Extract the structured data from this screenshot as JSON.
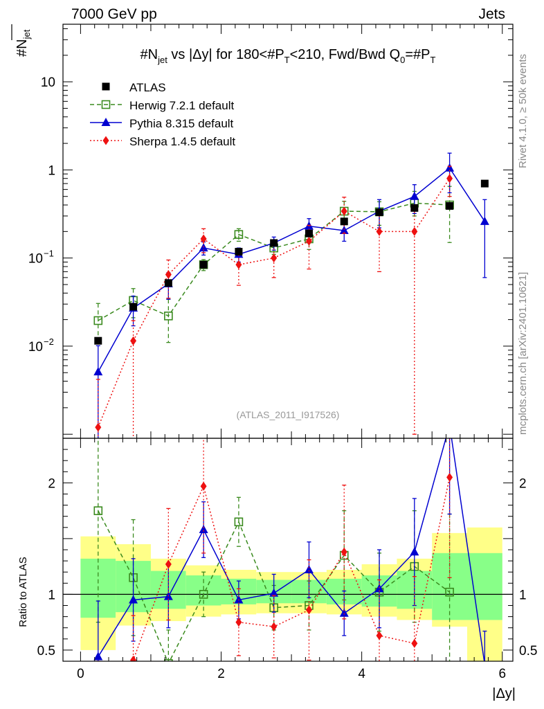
{
  "header": {
    "left": "7000 GeV pp",
    "right": "Jets"
  },
  "side_labels": {
    "rivet": "Rivet 4.1.0, ≥ 50k events",
    "mcplots": "mcplots.cern.ch [arXiv:2401.10621]"
  },
  "chart_data": {
    "type": "scatter",
    "title": "#N_jet vs |Δy| for 180<#P_T<210, Fwd/Bwd Q0=#P_T",
    "title_parts": {
      "a": "#N",
      "a_sub": "jet",
      "b": " vs |Δy| for 180<#P",
      "b_sub": "T",
      "c": "<210, Fwd/Bwd Q",
      "c_sub": "0",
      "d": "=#P",
      "d_sub": "T"
    },
    "ylabel": "#N_jet",
    "ylabel_parts": {
      "main": "#N",
      "sub": "jet"
    },
    "xlabel": "|Δy|",
    "ratio_ylabel": "Ratio to ATLAS",
    "analysis_id": "(ATLAS_2011_I917526)",
    "xlim": [
      -0.25,
      6.15
    ],
    "ylim_log": [
      0.0009,
      45
    ],
    "ratio_ylim": [
      0.4,
      2.4
    ],
    "x_ticks": [
      0,
      2,
      4,
      6
    ],
    "x_tick_labels": [
      "0",
      "2",
      "4",
      "6"
    ],
    "y_ticks": [
      {
        "value": 10,
        "label": "10",
        "sup": ""
      },
      {
        "value": 1,
        "label": "1",
        "sup": ""
      },
      {
        "value": 0.1,
        "label": "10",
        "sup": "−1"
      },
      {
        "value": 0.01,
        "label": "10",
        "sup": "−2"
      }
    ],
    "ratio_ticks": [
      {
        "value": 0.5,
        "label": "0.5"
      },
      {
        "value": 1,
        "label": "1"
      },
      {
        "value": 2,
        "label": "2"
      }
    ],
    "bands": {
      "edges": [
        0,
        0.5,
        1,
        1.5,
        2,
        2.5,
        3,
        3.5,
        4,
        4.5,
        5,
        5.5,
        6
      ],
      "yellow_lo": [
        0.5,
        0.72,
        0.76,
        0.8,
        0.82,
        0.83,
        0.83,
        0.82,
        0.8,
        0.77,
        0.71,
        0.4
      ],
      "yellow_hi": [
        1.52,
        1.45,
        1.32,
        1.26,
        1.22,
        1.2,
        1.2,
        1.22,
        1.27,
        1.32,
        1.55,
        1.6
      ],
      "green_lo": [
        0.79,
        0.84,
        0.87,
        0.9,
        0.91,
        0.92,
        0.92,
        0.91,
        0.89,
        0.87,
        0.77,
        0.77
      ],
      "green_hi": [
        1.32,
        1.3,
        1.21,
        1.17,
        1.14,
        1.13,
        1.13,
        1.14,
        1.17,
        1.21,
        1.37,
        1.37
      ]
    },
    "series": [
      {
        "name": "ATLAS",
        "color": "#000000",
        "marker": "square",
        "x": [
          0.25,
          0.75,
          1.25,
          1.75,
          2.25,
          2.75,
          3.25,
          3.75,
          4.25,
          4.75,
          5.25,
          5.75
        ],
        "y": [
          0.0115,
          0.028,
          0.052,
          0.084,
          0.118,
          0.148,
          0.19,
          0.26,
          0.33,
          0.37,
          0.39,
          0.7
        ]
      },
      {
        "name": "Herwig 7.2.1 default",
        "color": "#3a8a1e",
        "marker": "open-square",
        "dash": "6,4",
        "x": [
          0.25,
          0.75,
          1.25,
          1.75,
          2.25,
          2.75,
          3.25,
          3.75,
          4.25,
          4.75,
          5.25
        ],
        "y": [
          0.0195,
          0.033,
          0.022,
          0.084,
          0.185,
          0.13,
          0.165,
          0.34,
          0.335,
          0.42,
          0.4
        ],
        "err_lo": [
          0.0085,
          0.012,
          0.011,
          0.012,
          0.03,
          0.02,
          0.04,
          0.1,
          0.1,
          0.12,
          0.25
        ],
        "err_hi": [
          0.011,
          0.012,
          0.012,
          0.012,
          0.03,
          0.025,
          0.05,
          0.1,
          0.1,
          0.15,
          0.25
        ],
        "ratio": [
          1.75,
          1.15,
          0.38,
          1.0,
          1.65,
          0.88,
          0.9,
          1.35,
          1.02,
          1.25,
          1.02
        ],
        "ratio_err": [
          1.0,
          0.52,
          0.3,
          0.2,
          0.22,
          0.2,
          0.22,
          0.4,
          0.35,
          0.5,
          0.7
        ]
      },
      {
        "name": "Pythia 8.315 default",
        "color": "#0000d0",
        "marker": "triangle",
        "dash": "",
        "x": [
          0.25,
          0.75,
          1.25,
          1.75,
          2.25,
          2.75,
          3.25,
          3.75,
          4.25,
          4.75,
          5.25,
          5.75
        ],
        "y": [
          0.0051,
          0.027,
          0.051,
          0.13,
          0.11,
          0.148,
          0.23,
          0.205,
          0.34,
          0.5,
          1.05,
          0.26
        ],
        "err_lo": [
          0.0045,
          0.01,
          0.017,
          0.022,
          0.02,
          0.025,
          0.05,
          0.05,
          0.12,
          0.18,
          0.5,
          0.2
        ],
        "err_hi": [
          0.005,
          0.01,
          0.017,
          0.022,
          0.02,
          0.025,
          0.05,
          0.05,
          0.12,
          0.18,
          0.5,
          0.2
        ],
        "ratio": [
          0.44,
          0.95,
          0.98,
          1.58,
          0.95,
          1.01,
          1.22,
          0.83,
          1.05,
          1.38,
          2.52,
          0.37
        ],
        "ratio_err": [
          0.5,
          0.37,
          0.28,
          0.25,
          0.17,
          0.17,
          0.25,
          0.2,
          0.35,
          0.48,
          0.8,
          0.3
        ]
      },
      {
        "name": "Sherpa 1.4.5 default",
        "color": "#ee1111",
        "marker": "diamond",
        "dash": "2,3",
        "x": [
          0.25,
          0.75,
          1.25,
          1.75,
          2.25,
          2.75,
          3.25,
          3.75,
          4.25,
          4.75,
          5.25
        ],
        "y": [
          0.0012,
          0.0115,
          0.065,
          0.165,
          0.084,
          0.1,
          0.155,
          0.34,
          0.2,
          0.2,
          0.8
        ],
        "err_lo": [
          0.001,
          0.011,
          0.03,
          0.05,
          0.035,
          0.04,
          0.08,
          0.15,
          0.13,
          0.199,
          0.3
        ],
        "err_hi": [
          0.003,
          0.008,
          0.03,
          0.05,
          0.035,
          0.04,
          0.08,
          0.15,
          0.13,
          0.2,
          0.3
        ],
        "ratio": [
          0.1,
          0.41,
          1.27,
          1.97,
          0.75,
          0.71,
          0.86,
          1.38,
          0.63,
          0.56,
          2.05
        ],
        "ratio_err": [
          0.3,
          0.4,
          0.5,
          0.6,
          0.3,
          0.28,
          0.45,
          0.6,
          0.5,
          0.6,
          0.9
        ]
      }
    ]
  }
}
